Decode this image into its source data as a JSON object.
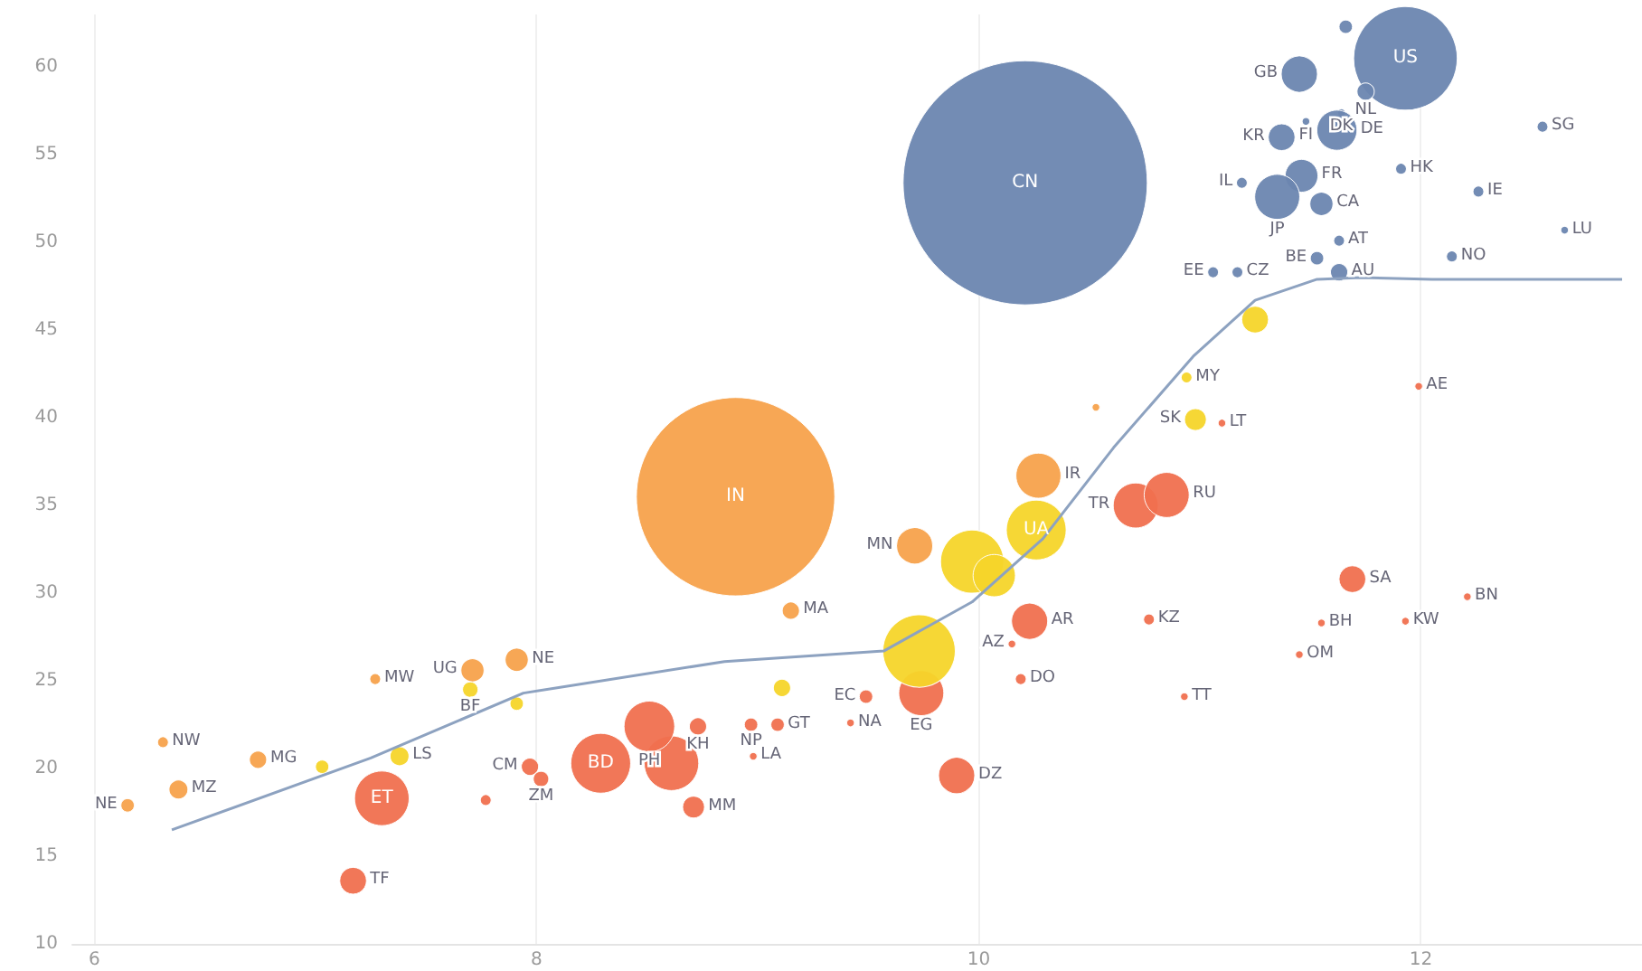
{
  "chart_data": {
    "type": "bubble",
    "xlim": [
      5.9,
      13
    ],
    "ylim": [
      10,
      63
    ],
    "xticks": [
      6,
      8,
      10,
      12
    ],
    "yticks": [
      10,
      15,
      20,
      25,
      30,
      35,
      40,
      45,
      50,
      55,
      60
    ],
    "grid": "x",
    "series": [
      {
        "color": "#6b86b0",
        "x": [
          10.21,
          11.93,
          11.66,
          11.45,
          11.75,
          11.48,
          11.64,
          11.37,
          11.62,
          11.46,
          11.35,
          11.19,
          11.55,
          11.91,
          12.26,
          12.55,
          12.65,
          11.63,
          11.53,
          11.63,
          12.14,
          11.17,
          11.06
        ],
        "values": [
          53.4,
          60.5,
          62.3,
          59.6,
          58.6,
          56.9,
          57.4,
          56.0,
          56.4,
          53.8,
          52.6,
          53.4,
          52.2,
          54.2,
          52.9,
          56.6,
          50.7,
          50.1,
          49.1,
          48.3,
          49.2,
          48.3,
          48.3
        ],
        "sizes": [
          1,
          0.18,
          0.003,
          0.022,
          0.005,
          0.001,
          0.001,
          0.012,
          0.027,
          0.018,
          0.034,
          0.002,
          0.009,
          0.002,
          0.002,
          0.002,
          0.001,
          0.002,
          0.003,
          0.005,
          0.002,
          0.002,
          0.002
        ]
      },
      {
        "color": "#f0704f",
        "x": [
          7.17,
          7.3,
          8.29,
          8.61,
          8.51,
          8.71,
          8.73,
          7.97,
          8.02,
          8.97,
          9.09,
          8.98,
          7.77,
          9.74,
          10.23,
          10.71,
          10.85,
          10.19,
          10.15,
          10.77,
          10.93,
          11.45,
          11.55,
          11.69,
          11.93,
          12.21,
          11.99,
          11.1,
          9.49,
          9.42,
          9.9
        ],
        "values": [
          13.6,
          18.3,
          20.3,
          20.3,
          22.4,
          17.8,
          22.4,
          20.1,
          19.4,
          22.5,
          22.5,
          20.7,
          18.2,
          24.3,
          28.4,
          35.0,
          35.6,
          25.1,
          27.1,
          28.5,
          24.1,
          26.5,
          28.3,
          30.8,
          28.4,
          29.8,
          41.8,
          39.7,
          24.1,
          22.6,
          19.6
        ],
        "sizes": [
          0.012,
          0.05,
          0.06,
          0.05,
          0.043,
          0.008,
          0.005,
          0.005,
          0.004,
          0.003,
          0.003,
          0.001,
          0.002,
          0.034,
          0.022,
          0.034,
          0.034,
          0.002,
          0.001,
          0.002,
          0.001,
          0.001,
          0.001,
          0.012,
          0.001,
          0.001,
          0.001,
          0.001,
          0.003,
          0.001,
          0.022
        ]
      },
      {
        "color": "#f7a24c",
        "x": [
          7.27,
          7.71,
          7.91,
          6.31,
          6.74,
          6.38,
          6.15,
          8.9,
          9.15,
          9.71,
          10.27,
          10.53
        ],
        "values": [
          25.1,
          25.6,
          26.2,
          21.5,
          20.5,
          18.8,
          17.9,
          35.5,
          29.0,
          32.7,
          36.7,
          40.6
        ],
        "sizes": [
          0.002,
          0.009,
          0.009,
          0.002,
          0.005,
          0.006,
          0.003,
          0.66,
          0.005,
          0.022,
          0.034,
          0.001
        ]
      },
      {
        "color": "#f6d52a",
        "x": [
          7.03,
          7.38,
          7.7,
          7.91,
          9.11,
          9.97,
          10.07,
          9.73,
          10.26,
          10.98,
          10.94,
          11.25
        ],
        "values": [
          20.1,
          20.7,
          24.5,
          23.7,
          24.6,
          31.8,
          31.0,
          26.7,
          33.6,
          39.9,
          42.3,
          45.6
        ],
        "sizes": [
          0.003,
          0.006,
          0.004,
          0.003,
          0.005,
          0.067,
          0.03,
          0.088,
          0.06,
          0.008,
          0.002,
          0.012
        ]
      },
      {
        "type": "line",
        "color": "#8da2c0",
        "x": [
          6.35,
          7.25,
          7.94,
          8.85,
          9.57,
          9.97,
          10.29,
          10.61,
          10.97,
          11.25,
          11.53,
          11.73,
          12.05,
          12.91
        ],
        "values": [
          16.5,
          20.6,
          24.3,
          26.1,
          26.7,
          29.5,
          33.1,
          38.3,
          43.5,
          46.7,
          47.9,
          48.0,
          47.9,
          47.9
        ]
      }
    ],
    "annotations": [
      {
        "text": "CN",
        "x": 10.21,
        "y": 53.4
      },
      {
        "text": "US",
        "x": 11.93,
        "y": 60.5
      },
      {
        "text": "GB",
        "x": 11.45,
        "y": 59.6
      },
      {
        "text": "NL",
        "x": 11.75,
        "y": 58.6
      },
      {
        "text": "FI",
        "x": 11.48,
        "y": 56.9
      },
      {
        "text": "DK",
        "x": 11.64,
        "y": 57.4
      },
      {
        "text": "KR",
        "x": 11.37,
        "y": 56.0
      },
      {
        "text": "DE",
        "x": 11.62,
        "y": 56.4
      },
      {
        "text": "FR",
        "x": 11.46,
        "y": 53.8
      },
      {
        "text": "JP",
        "x": 11.35,
        "y": 52.6
      },
      {
        "text": "IL",
        "x": 11.19,
        "y": 53.4
      },
      {
        "text": "CA",
        "x": 11.55,
        "y": 52.2
      },
      {
        "text": "HK",
        "x": 11.91,
        "y": 54.2
      },
      {
        "text": "IE",
        "x": 12.26,
        "y": 52.9
      },
      {
        "text": "SG",
        "x": 12.55,
        "y": 56.6
      },
      {
        "text": "LU",
        "x": 12.65,
        "y": 50.7
      },
      {
        "text": "AT",
        "x": 11.63,
        "y": 50.1
      },
      {
        "text": "BE",
        "x": 11.53,
        "y": 49.1
      },
      {
        "text": "AU",
        "x": 11.63,
        "y": 48.3
      },
      {
        "text": "NO",
        "x": 12.14,
        "y": 49.2
      },
      {
        "text": "CZ",
        "x": 11.17,
        "y": 48.3
      },
      {
        "text": "EE",
        "x": 11.06,
        "y": 48.3
      },
      {
        "text": "TF",
        "x": 7.17,
        "y": 13.6
      },
      {
        "text": "ET",
        "x": 7.3,
        "y": 18.3
      },
      {
        "text": "BD",
        "x": 8.29,
        "y": 20.3
      },
      {
        "text": "PH",
        "x": 8.51,
        "y": 22.4
      },
      {
        "text": "MM",
        "x": 8.71,
        "y": 17.8
      },
      {
        "text": "KH",
        "x": 8.73,
        "y": 22.4
      },
      {
        "text": "CM",
        "x": 7.97,
        "y": 20.1
      },
      {
        "text": "ZM",
        "x": 8.02,
        "y": 19.4
      },
      {
        "text": "NP",
        "x": 8.97,
        "y": 22.5
      },
      {
        "text": "GT",
        "x": 9.09,
        "y": 22.5
      },
      {
        "text": "LA",
        "x": 8.98,
        "y": 20.7
      },
      {
        "text": "EG",
        "x": 9.74,
        "y": 24.3
      },
      {
        "text": "AR",
        "x": 10.23,
        "y": 28.4
      },
      {
        "text": "TR",
        "x": 10.71,
        "y": 35.0
      },
      {
        "text": "RU",
        "x": 10.85,
        "y": 35.6
      },
      {
        "text": "DO",
        "x": 10.19,
        "y": 25.1
      },
      {
        "text": "AZ",
        "x": 10.15,
        "y": 27.1
      },
      {
        "text": "KZ",
        "x": 10.77,
        "y": 28.5
      },
      {
        "text": "TT",
        "x": 10.93,
        "y": 24.1
      },
      {
        "text": "OM",
        "x": 11.45,
        "y": 26.5
      },
      {
        "text": "BH",
        "x": 11.55,
        "y": 28.3
      },
      {
        "text": "SA",
        "x": 11.69,
        "y": 30.8
      },
      {
        "text": "KW",
        "x": 11.93,
        "y": 28.4
      },
      {
        "text": "BN",
        "x": 12.21,
        "y": 29.8
      },
      {
        "text": "AE",
        "x": 11.99,
        "y": 41.8
      },
      {
        "text": "LT",
        "x": 11.1,
        "y": 39.7
      },
      {
        "text": "EC",
        "x": 9.49,
        "y": 24.1
      },
      {
        "text": "NA",
        "x": 9.42,
        "y": 22.6
      },
      {
        "text": "DZ",
        "x": 9.9,
        "y": 19.6
      },
      {
        "text": "MW",
        "x": 7.27,
        "y": 25.1
      },
      {
        "text": "UG",
        "x": 7.71,
        "y": 25.6
      },
      {
        "text": "NE",
        "x": 7.91,
        "y": 26.2
      },
      {
        "text": "NW",
        "x": 6.31,
        "y": 21.5
      },
      {
        "text": "MG",
        "x": 6.74,
        "y": 20.5
      },
      {
        "text": "MZ",
        "x": 6.38,
        "y": 18.8
      },
      {
        "text": "NE",
        "x": 6.15,
        "y": 17.9
      },
      {
        "text": "IN",
        "x": 8.9,
        "y": 35.5
      },
      {
        "text": "MA",
        "x": 9.15,
        "y": 29.0
      },
      {
        "text": "MN",
        "x": 9.71,
        "y": 32.7
      },
      {
        "text": "IR",
        "x": 10.27,
        "y": 36.7
      },
      {
        "text": "LS",
        "x": 7.38,
        "y": 20.7
      },
      {
        "text": "BF",
        "x": 7.7,
        "y": 24.5
      },
      {
        "text": "UA",
        "x": 10.26,
        "y": 33.6
      },
      {
        "text": "SK",
        "x": 10.98,
        "y": 39.9
      },
      {
        "text": "MY",
        "x": 10.94,
        "y": 42.3
      }
    ]
  }
}
